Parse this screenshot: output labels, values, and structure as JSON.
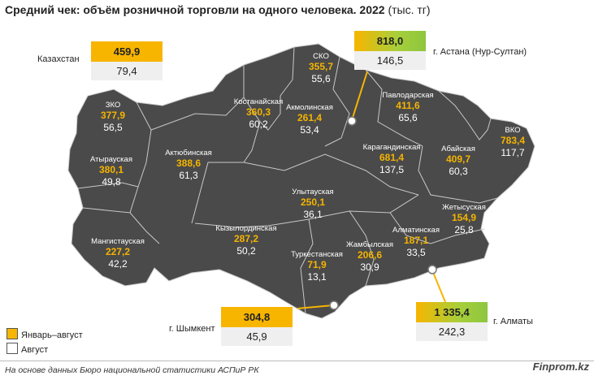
{
  "title": "Средний чек: объём розничной торговли на одного человека. 2022",
  "unit": "(тыс. тг)",
  "kazakhstan": {
    "name": "Казахстан",
    "jan_aug": "459,9",
    "aug": "79,4"
  },
  "cities": [
    {
      "id": "astana",
      "name": "г. Астана (Нур-Султан)",
      "jan_aug": "818,0",
      "aug": "146,5"
    },
    {
      "id": "almaty",
      "name": "г. Алматы",
      "jan_aug": "1 335,4",
      "aug": "242,3"
    },
    {
      "id": "shymkent",
      "name": "г. Шымкент",
      "jan_aug": "304,8",
      "aug": "45,9"
    }
  ],
  "regions": [
    {
      "id": "sko",
      "name": "СКО",
      "jan_aug": "355,7",
      "aug": "55,6"
    },
    {
      "id": "kostanay",
      "name": "Костанайская",
      "jan_aug": "360,3",
      "aug": "60,2"
    },
    {
      "id": "akmola",
      "name": "Акмолинская",
      "jan_aug": "261,4",
      "aug": "53,4"
    },
    {
      "id": "pavlodar",
      "name": "Павлодарская",
      "jan_aug": "411,6",
      "aug": "65,6"
    },
    {
      "id": "vko",
      "name": "ВКО",
      "jan_aug": "783,4",
      "aug": "117,7"
    },
    {
      "id": "zko",
      "name": "ЗКО",
      "jan_aug": "377,9",
      "aug": "56,5"
    },
    {
      "id": "atyrau",
      "name": "Атырауская",
      "jan_aug": "380,1",
      "aug": "49,8"
    },
    {
      "id": "aktobe",
      "name": "Актюбинская",
      "jan_aug": "388,6",
      "aug": "61,3"
    },
    {
      "id": "karaganda",
      "name": "Карагандинская",
      "jan_aug": "681,4",
      "aug": "137,5"
    },
    {
      "id": "abay",
      "name": "Абайская",
      "jan_aug": "409,7",
      "aug": "60,3"
    },
    {
      "id": "ulytau",
      "name": "Улытауская",
      "jan_aug": "250,1",
      "aug": "36,1"
    },
    {
      "id": "zhetysu",
      "name": "Жетысуская",
      "jan_aug": "154,9",
      "aug": "25,8"
    },
    {
      "id": "almaty_reg",
      "name": "Алматинская",
      "jan_aug": "187,1",
      "aug": "33,5"
    },
    {
      "id": "mangystau",
      "name": "Мангистауская",
      "jan_aug": "227,2",
      "aug": "42,2"
    },
    {
      "id": "kyzylorda",
      "name": "Кызылординская",
      "jan_aug": "287,2",
      "aug": "50,2"
    },
    {
      "id": "turkestan",
      "name": "Туркестанская",
      "jan_aug": "71,9",
      "aug": "13,1"
    },
    {
      "id": "zhambyl",
      "name": "Жамбылская",
      "jan_aug": "206,6",
      "aug": "30,9"
    }
  ],
  "legend": {
    "jan_aug": "Январь–август",
    "aug": "Август"
  },
  "colors": {
    "jan_aug": "#f7b500",
    "aug": "#efefef",
    "map_fill": "#4a4a4a",
    "leader": "#f7b500",
    "top_city": "#8dc63f"
  },
  "footer": "На основе данных Бюро национальной статистики АСПиР РК",
  "brand": "Finprom.kz"
}
